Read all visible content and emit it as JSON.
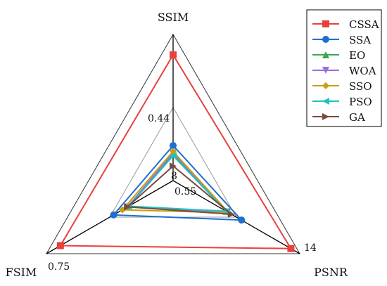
{
  "chart_data": {
    "type": "radar",
    "axes": [
      {
        "name": "SSIM",
        "tick_labels": [
          "0.44"
        ],
        "max_label": ""
      },
      {
        "name": "PSNR",
        "tick_labels": [],
        "max_label": "14"
      },
      {
        "name": "FSIM",
        "tick_labels": [
          "0.55"
        ],
        "max_label": "0.75"
      }
    ],
    "center_label": "8",
    "grid": true,
    "legend_position": "top-right",
    "series": [
      {
        "name": "CSSA",
        "color": "#e8413d",
        "marker": "square",
        "values": [
          0.86,
          0.93,
          0.89
        ]
      },
      {
        "name": "SSA",
        "color": "#1f6fd1",
        "marker": "circle",
        "values": [
          0.24,
          0.54,
          0.47
        ]
      },
      {
        "name": "EO",
        "color": "#3aa852",
        "marker": "triangle-up",
        "values": [
          0.18,
          0.42,
          0.36
        ]
      },
      {
        "name": "WOA",
        "color": "#9b6ee0",
        "marker": "triangle-down",
        "values": [
          0.19,
          0.43,
          0.36
        ]
      },
      {
        "name": "SSO",
        "color": "#c9a010",
        "marker": "diamond",
        "values": [
          0.2,
          0.44,
          0.4
        ]
      },
      {
        "name": "PSO",
        "color": "#1ec2c2",
        "marker": "triangle-left",
        "values": [
          0.17,
          0.42,
          0.35
        ]
      },
      {
        "name": "GA",
        "color": "#7a4a3c",
        "marker": "triangle-right",
        "values": [
          0.1,
          0.46,
          0.36
        ]
      }
    ]
  }
}
